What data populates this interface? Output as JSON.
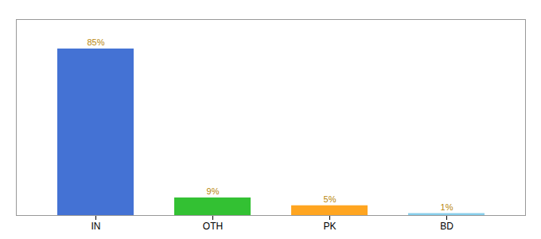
{
  "chart_data": {
    "type": "bar",
    "categories": [
      "IN",
      "OTH",
      "PK",
      "BD"
    ],
    "values": [
      85,
      9,
      5,
      1
    ],
    "value_labels": [
      "85%",
      "9%",
      "5%",
      "1%"
    ],
    "colors": [
      "#4472D4",
      "#33C133",
      "#FFA520",
      "#87CEEB"
    ],
    "ylim": [
      0,
      100
    ],
    "data_labels": true,
    "tick_labels": "x",
    "grid": false
  }
}
